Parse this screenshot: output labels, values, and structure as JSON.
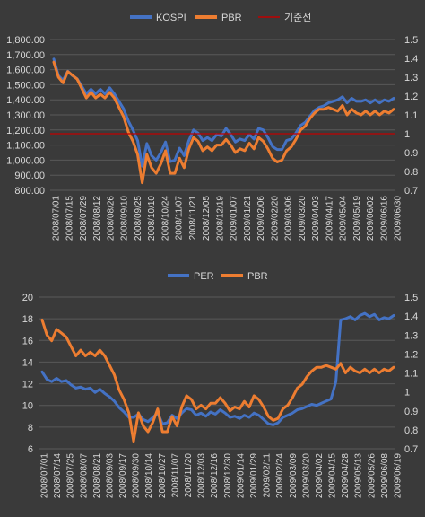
{
  "chart_data": [
    {
      "type": "line",
      "legend": [
        "KOSPI",
        "PBR",
        "기준선"
      ],
      "legend_position": "top-center",
      "grid": true,
      "ylim_left": [
        800,
        1800
      ],
      "ylim_right": [
        0.7,
        1.5
      ],
      "y_ticks_left": [
        "1,800.00",
        "1,700.00",
        "1,600.00",
        "1,500.00",
        "1,400.00",
        "1,300.00",
        "1,200.00",
        "1,100.00",
        "1,000.00",
        "900.00",
        "800.00"
      ],
      "y_ticks_right": [
        "1.5",
        "1.4",
        "1.3",
        "1.2",
        "1.1",
        "1",
        "0.9",
        "0.8",
        "0.7"
      ],
      "x_labels": [
        "2008/07/01",
        "2008/07/15",
        "2008/07/29",
        "2008/08/12",
        "2008/08/26",
        "2008/09/10",
        "2008/09/25",
        "2008/10/10",
        "2008/10/24",
        "2008/11/07",
        "2008/11/21",
        "2008/12/05",
        "2008/12/19",
        "2009/01/07",
        "2009/01/21",
        "2009/02/06",
        "2009/02/20",
        "2009/03/06",
        "2009/03/20",
        "2009/04/03",
        "2009/04/17",
        "2009/05/04",
        "2009/05/19",
        "2009/06/02",
        "2009/06/16",
        "2009/06/30"
      ],
      "series": [
        {
          "name": "KOSPI",
          "axis": "left",
          "color": "#4472c4",
          "values": [
            1670,
            1560,
            1530,
            1590,
            1560,
            1540,
            1490,
            1440,
            1470,
            1440,
            1470,
            1440,
            1480,
            1440,
            1390,
            1340,
            1260,
            1200,
            1130,
            960,
            1110,
            1030,
            1000,
            1050,
            1120,
            990,
            1000,
            1080,
            1030,
            1130,
            1200,
            1180,
            1130,
            1150,
            1130,
            1170,
            1160,
            1210,
            1170,
            1120,
            1140,
            1130,
            1170,
            1140,
            1210,
            1200,
            1150,
            1090,
            1070,
            1070,
            1130,
            1140,
            1180,
            1230,
            1250,
            1290,
            1330,
            1350,
            1360,
            1380,
            1390,
            1400,
            1420,
            1380,
            1410,
            1390,
            1390,
            1400,
            1380,
            1400,
            1380,
            1400,
            1390,
            1410
          ]
        },
        {
          "name": "PBR",
          "axis": "right",
          "color": "#ed7d31",
          "values": [
            1.38,
            1.3,
            1.27,
            1.33,
            1.31,
            1.29,
            1.24,
            1.19,
            1.22,
            1.19,
            1.21,
            1.19,
            1.22,
            1.19,
            1.14,
            1.09,
            1.01,
            0.96,
            0.89,
            0.74,
            0.89,
            0.82,
            0.79,
            0.84,
            0.91,
            0.79,
            0.79,
            0.87,
            0.82,
            0.92,
            0.98,
            0.96,
            0.91,
            0.93,
            0.91,
            0.94,
            0.94,
            0.97,
            0.94,
            0.9,
            0.92,
            0.91,
            0.95,
            0.92,
            0.98,
            0.96,
            0.92,
            0.87,
            0.85,
            0.86,
            0.91,
            0.93,
            0.97,
            1.02,
            1.04,
            1.08,
            1.11,
            1.13,
            1.13,
            1.14,
            1.13,
            1.12,
            1.15,
            1.1,
            1.13,
            1.11,
            1.1,
            1.12,
            1.1,
            1.12,
            1.1,
            1.12,
            1.11,
            1.13
          ]
        },
        {
          "name": "기준선",
          "axis": "right",
          "color": "#c00000",
          "constant": 1.0
        }
      ]
    },
    {
      "type": "line",
      "legend": [
        "PER",
        "PBR"
      ],
      "legend_position": "top-center",
      "grid": true,
      "ylim_left": [
        6,
        20
      ],
      "ylim_right": [
        0.7,
        1.5
      ],
      "y_ticks_left": [
        "20",
        "18",
        "16",
        "14",
        "12",
        "10",
        "8",
        "6"
      ],
      "y_ticks_right": [
        "1.5",
        "1.4",
        "1.3",
        "1.2",
        "1.1",
        "1",
        "0.9",
        "0.8",
        "0.7"
      ],
      "x_labels": [
        "2008/07/01",
        "2008/07/14",
        "2008/07/25",
        "2008/08/07",
        "2008/08/21",
        "2008/09/03",
        "2008/09/17",
        "2008/09/30",
        "2008/10/14",
        "2008/10/27",
        "2008/11/07",
        "2008/11/20",
        "2008/12/03",
        "2008/12/16",
        "2008/12/30",
        "2009/01/14",
        "2009/01/29",
        "2009/02/11",
        "2009/02/24",
        "2009/03/09",
        "2009/03/20",
        "2009/04/02",
        "2009/04/15",
        "2009/04/28",
        "2009/05/13",
        "2009/05/26",
        "2009/06/08",
        "2009/06/19"
      ],
      "series": [
        {
          "name": "PER",
          "axis": "left",
          "color": "#4472c4",
          "values": [
            13.1,
            12.4,
            12.2,
            12.5,
            12.2,
            12.3,
            11.9,
            11.6,
            11.7,
            11.5,
            11.6,
            11.2,
            11.5,
            11.1,
            10.8,
            10.4,
            9.8,
            9.4,
            8.9,
            8.9,
            9.2,
            8.7,
            8.5,
            8.9,
            9.3,
            8.3,
            8.4,
            9.1,
            8.8,
            9.3,
            9.7,
            9.6,
            9.1,
            9.3,
            9.0,
            9.4,
            9.2,
            9.6,
            9.3,
            8.9,
            9.0,
            8.8,
            9.1,
            8.9,
            9.3,
            9.1,
            8.7,
            8.3,
            8.2,
            8.4,
            8.9,
            9.1,
            9.3,
            9.6,
            9.7,
            9.9,
            10.1,
            10.0,
            10.2,
            10.4,
            10.6,
            12.2,
            17.9,
            18.0,
            18.2,
            17.9,
            18.3,
            18.5,
            18.2,
            18.4,
            17.9,
            18.1,
            18.0,
            18.3
          ]
        },
        {
          "name": "PBR",
          "axis": "right",
          "color": "#ed7d31",
          "values": [
            1.38,
            1.3,
            1.27,
            1.33,
            1.31,
            1.29,
            1.24,
            1.19,
            1.22,
            1.19,
            1.21,
            1.19,
            1.22,
            1.19,
            1.14,
            1.09,
            1.01,
            0.96,
            0.89,
            0.74,
            0.89,
            0.82,
            0.79,
            0.84,
            0.91,
            0.79,
            0.79,
            0.87,
            0.82,
            0.92,
            0.98,
            0.96,
            0.91,
            0.93,
            0.91,
            0.94,
            0.94,
            0.97,
            0.94,
            0.9,
            0.92,
            0.91,
            0.95,
            0.92,
            0.98,
            0.96,
            0.92,
            0.87,
            0.85,
            0.86,
            0.91,
            0.93,
            0.97,
            1.02,
            1.04,
            1.08,
            1.11,
            1.13,
            1.13,
            1.14,
            1.13,
            1.12,
            1.15,
            1.1,
            1.13,
            1.11,
            1.1,
            1.12,
            1.1,
            1.12,
            1.1,
            1.12,
            1.11,
            1.13
          ]
        }
      ]
    }
  ]
}
